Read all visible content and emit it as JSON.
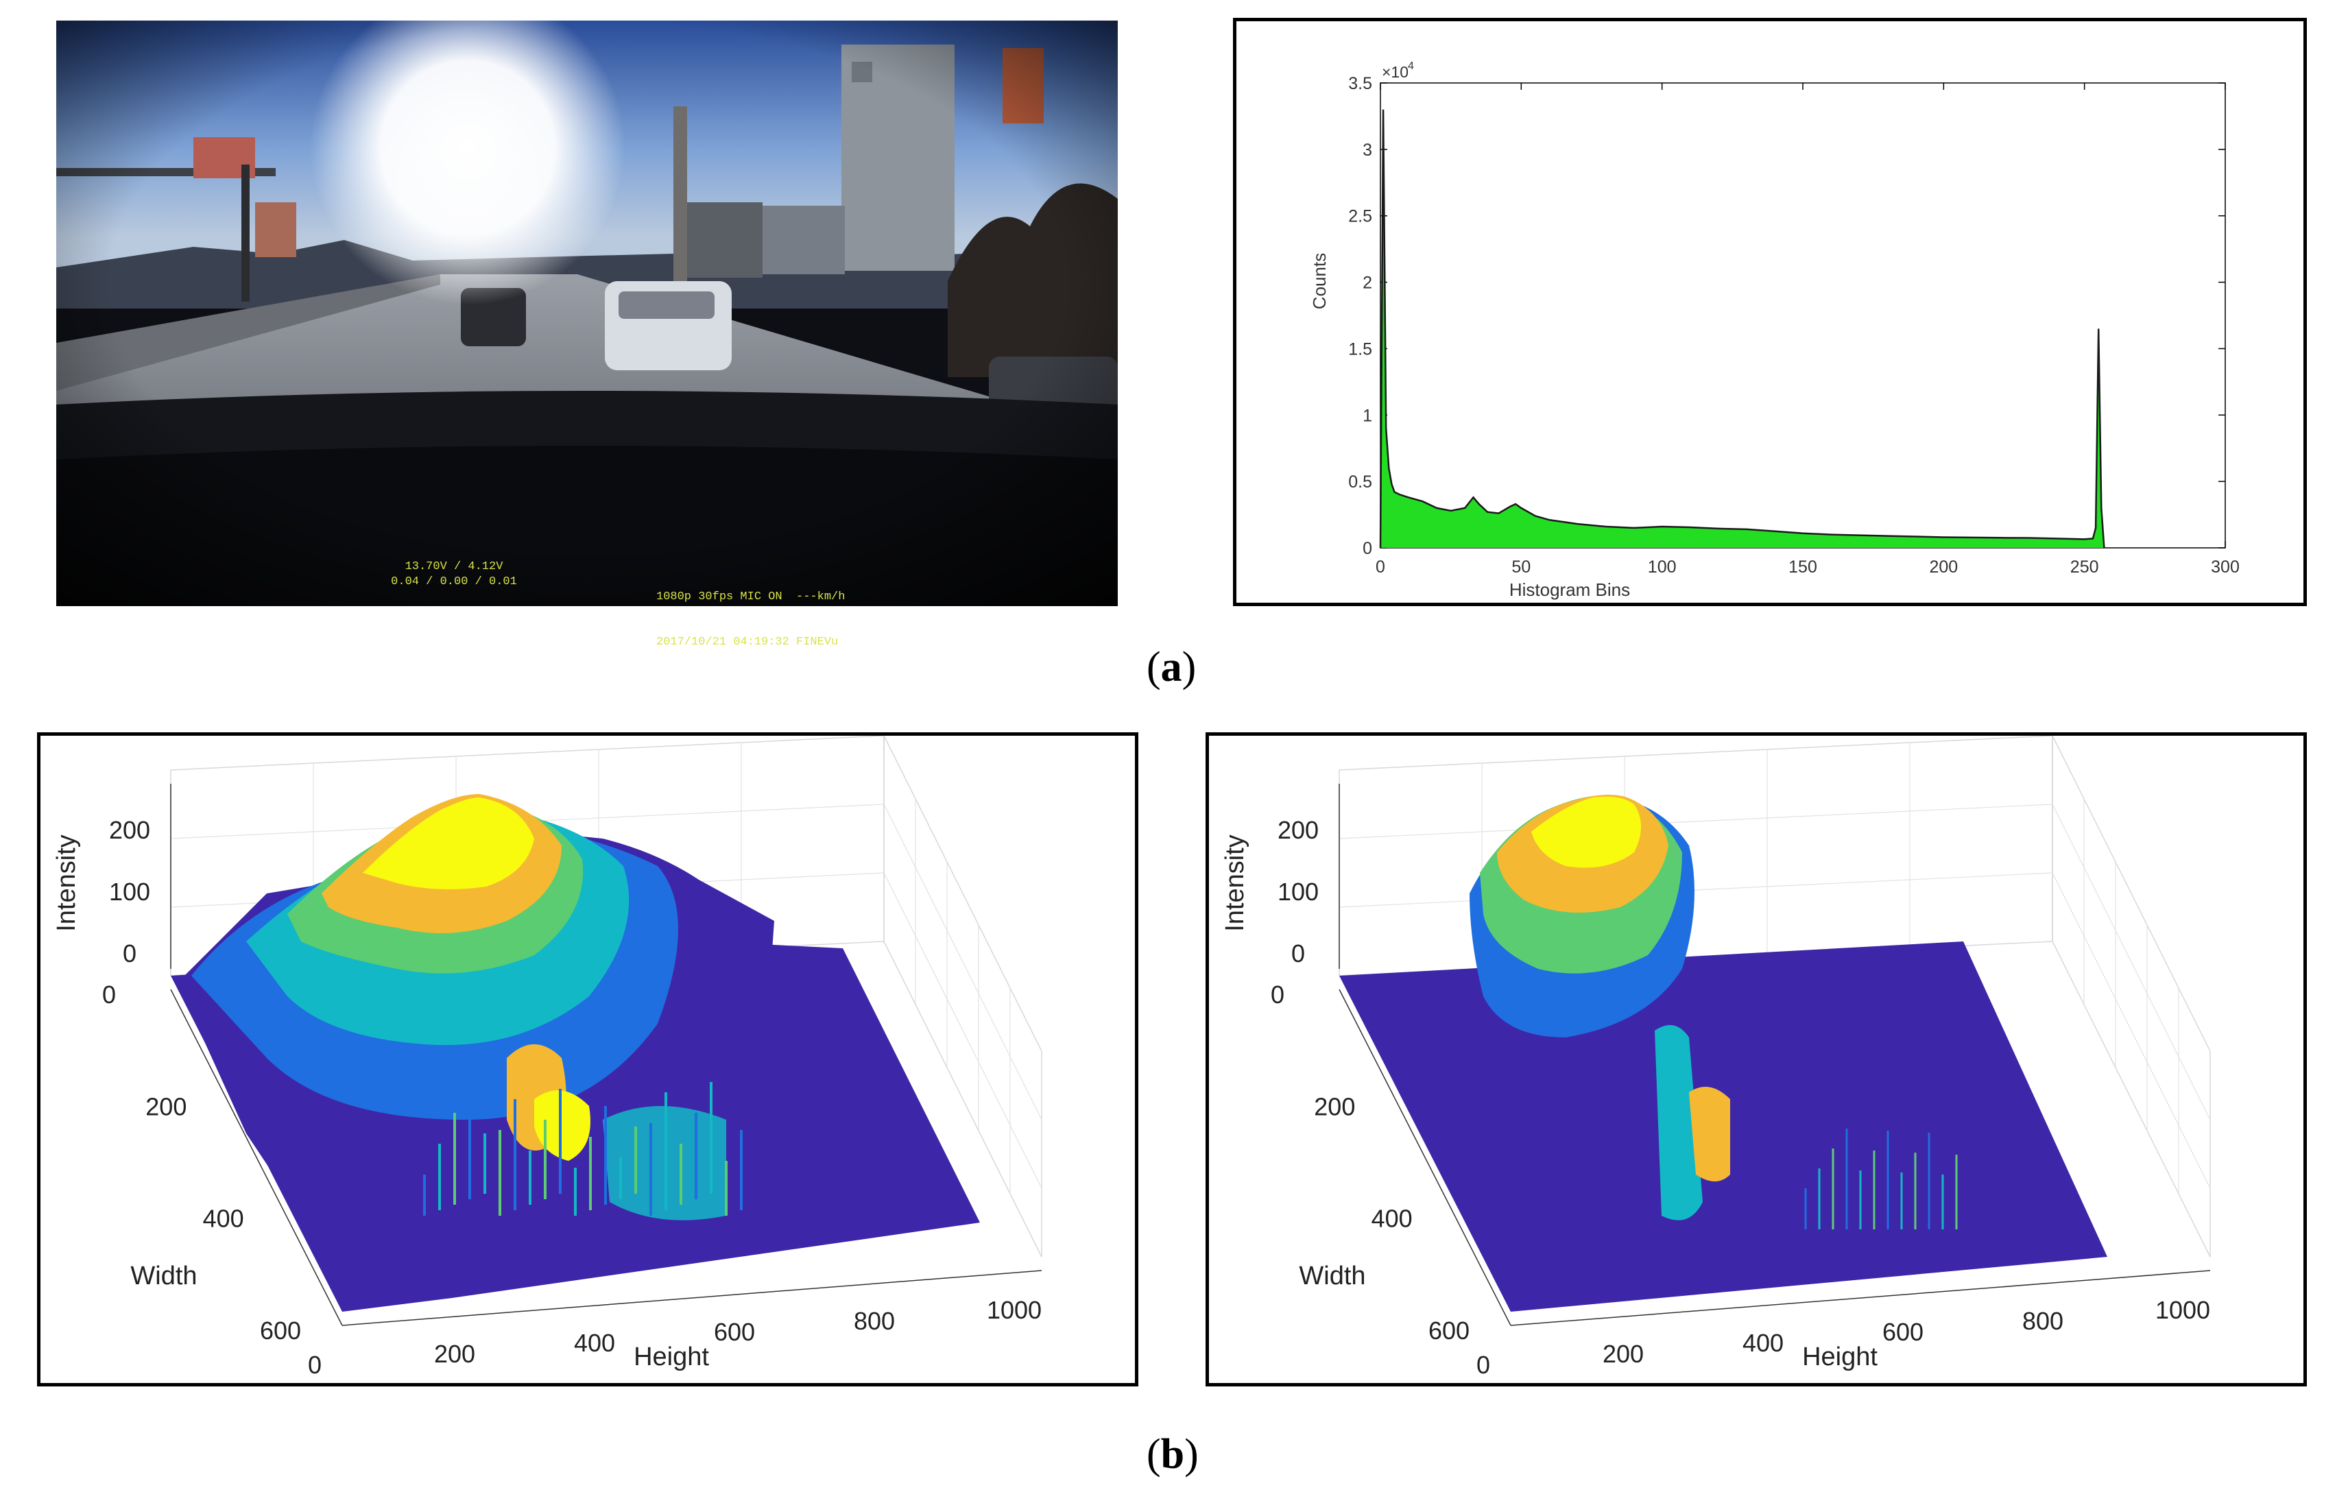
{
  "figure": {
    "panel_a_label": "a",
    "panel_b_label": "b"
  },
  "dashcam": {
    "overlay_line1_left": "13.70V / 4.12V",
    "overlay_line2_left": "0.04 / 0.00 / 0.01",
    "overlay_line1_right": "1080p 30fps MIC ON  ---km/h",
    "overlay_line2_right": "2017/10/21 04:19:32 FINEVu",
    "overlay_color": "#d9e24a"
  },
  "chart_data": [
    {
      "type": "area",
      "xlabel": "Histogram Bins",
      "ylabel": "Counts",
      "y_multiplier_label": "×10",
      "y_multiplier_exp": "4",
      "xlim": [
        0,
        300
      ],
      "ylim": [
        0,
        35000
      ],
      "x_ticks": [
        0,
        50,
        100,
        150,
        200,
        250,
        300
      ],
      "x_tick_labels": [
        "0",
        "50",
        "100",
        "150",
        "200",
        "250",
        "300"
      ],
      "y_ticks": [
        0,
        5000,
        10000,
        15000,
        20000,
        25000,
        30000,
        35000
      ],
      "y_tick_labels": [
        "0",
        "0.5",
        "1",
        "1.5",
        "2",
        "2.5",
        "3",
        "3.5"
      ],
      "fill_color": "#22dd22",
      "line_color": "#1a1a1a",
      "x": [
        0,
        1,
        2,
        3,
        4,
        5,
        7,
        10,
        15,
        20,
        25,
        30,
        33,
        35,
        38,
        42,
        46,
        48,
        50,
        55,
        60,
        70,
        80,
        90,
        100,
        110,
        120,
        130,
        140,
        150,
        160,
        170,
        180,
        190,
        200,
        210,
        220,
        230,
        240,
        250,
        253,
        254,
        255,
        256,
        257
      ],
      "y": [
        0,
        33000,
        9000,
        6000,
        4800,
        4200,
        4000,
        3800,
        3500,
        3000,
        2800,
        3000,
        3800,
        3300,
        2700,
        2600,
        3100,
        3300,
        3000,
        2400,
        2100,
        1800,
        1600,
        1500,
        1600,
        1550,
        1450,
        1400,
        1250,
        1100,
        1000,
        950,
        900,
        850,
        800,
        780,
        760,
        750,
        700,
        650,
        700,
        1500,
        16500,
        3000,
        0
      ]
    },
    {
      "type": "surface",
      "xlabel": "Height",
      "ylabel": "Width",
      "zlabel": "Intensity",
      "x_tick_labels": [
        "0",
        "200",
        "400",
        "600",
        "800",
        "1000"
      ],
      "y_tick_labels": [
        "0",
        "200",
        "400",
        "600"
      ],
      "z_tick_labels": [
        "0",
        "100",
        "200"
      ],
      "colors": [
        "#3e26a8",
        "#1f6fe0",
        "#13b8c6",
        "#5ccc72",
        "#f5b833",
        "#f9fb0e"
      ]
    },
    {
      "type": "surface",
      "xlabel": "Height",
      "ylabel": "Width",
      "zlabel": "Intensity",
      "x_tick_labels": [
        "0",
        "200",
        "400",
        "600",
        "800",
        "1000"
      ],
      "y_tick_labels": [
        "0",
        "200",
        "400",
        "600"
      ],
      "z_tick_labels": [
        "0",
        "100",
        "200"
      ],
      "colors": [
        "#3e26a8",
        "#1f6fe0",
        "#13b8c6",
        "#5ccc72",
        "#f5b833",
        "#f9fb0e"
      ]
    }
  ]
}
